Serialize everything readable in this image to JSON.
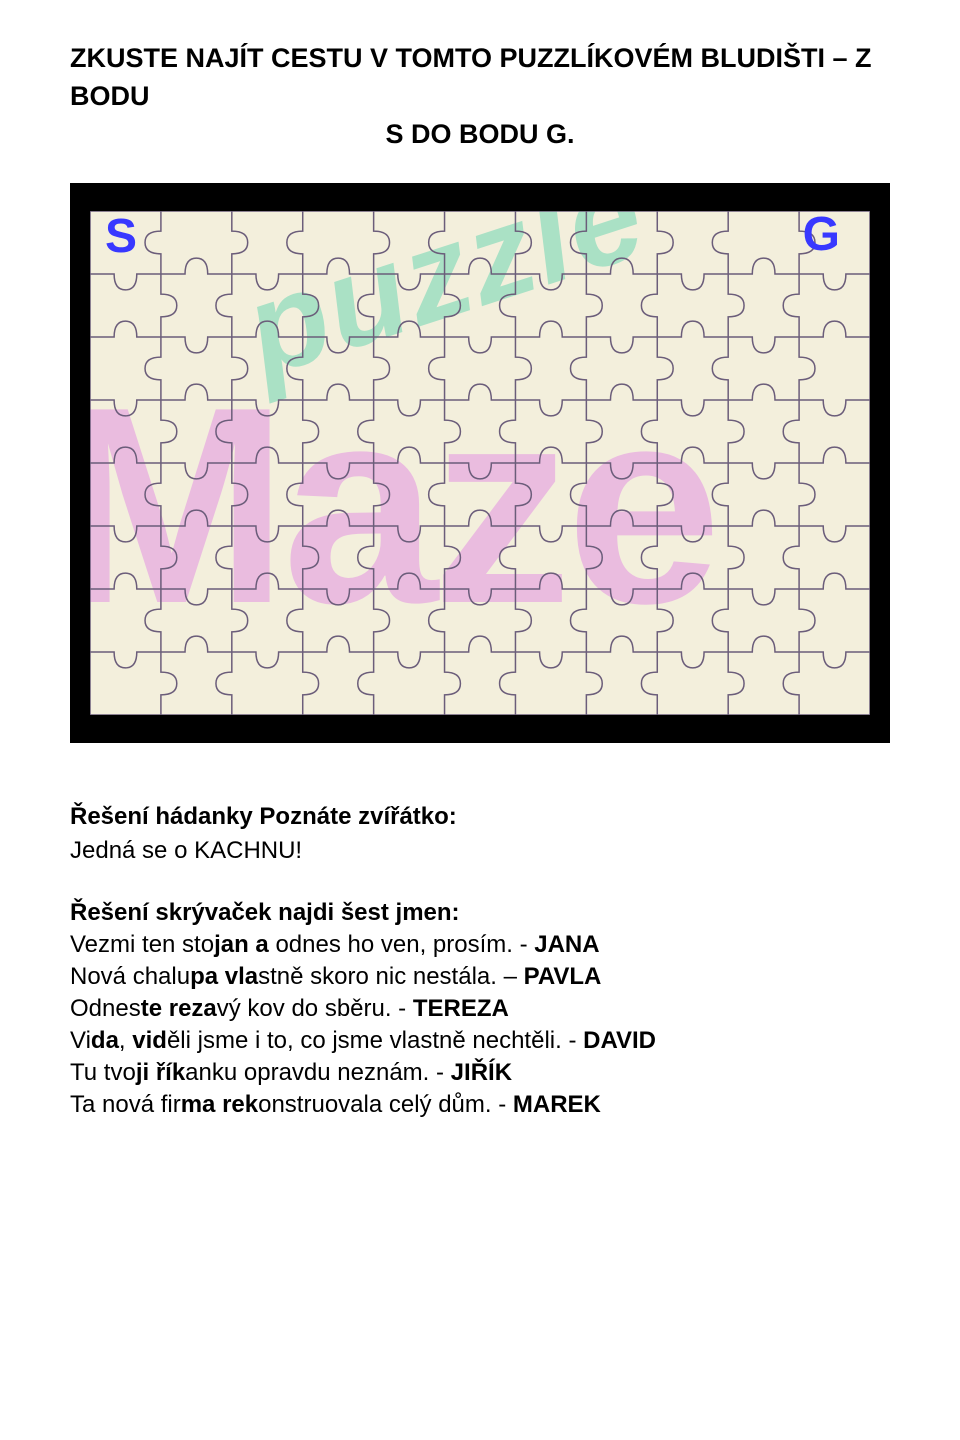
{
  "heading": {
    "line1": "ZKUSTE NAJÍT CESTU V TOMTO PUZZLÍKOVÉM BLUDIŠTI – Z BODU",
    "line2": "S DO BODU G."
  },
  "puzzle": {
    "background_color": "#000000",
    "board_color": "#f3efdc",
    "grid_color": "#6b5d7a",
    "watermark1_text": "puzzle",
    "watermark1_color": "#6fd6b3",
    "watermark2_text": "Maze",
    "watermark2_color": "#e9b4e0",
    "marker_start": "S",
    "marker_goal": "G",
    "marker_color": "#3838ff",
    "cols": 11,
    "rows": 8
  },
  "riddle1": {
    "title": "Řešení hádanky Poznáte zvířátko:",
    "body": "Jedná se o KACHNU!"
  },
  "riddle2": {
    "title": "Řešení skrývaček najdi šest jmen:",
    "lines": [
      {
        "pre": "Vezmi ten sto",
        "mid_b": "jan a",
        "post": " odnes ho ven, prosím. - ",
        "ans": "JANA"
      },
      {
        "pre": "Nová chalu",
        "mid_b": "pa vla",
        "post": "stně skoro nic nestála. – ",
        "ans": "PAVLA"
      },
      {
        "pre": "Odnes",
        "mid_b": "te reza",
        "post": "vý kov do sběru. - ",
        "ans": "TEREZA"
      },
      {
        "pre": "Vi",
        "mid_b": "da",
        "post_plain1": ", ",
        "mid_b2": "vid",
        "post": "ěli jsme i to, co jsme vlastně nechtěli. - ",
        "ans": "DAVID"
      },
      {
        "pre": "Tu tvo",
        "mid_b": "ji řík",
        "post": "anku opravdu neznám. - ",
        "ans": "JIŘÍK"
      },
      {
        "pre": "Ta nová fir",
        "mid_b": "ma rek",
        "post": "onstruovala celý dům. - ",
        "ans": "MAREK"
      }
    ]
  }
}
